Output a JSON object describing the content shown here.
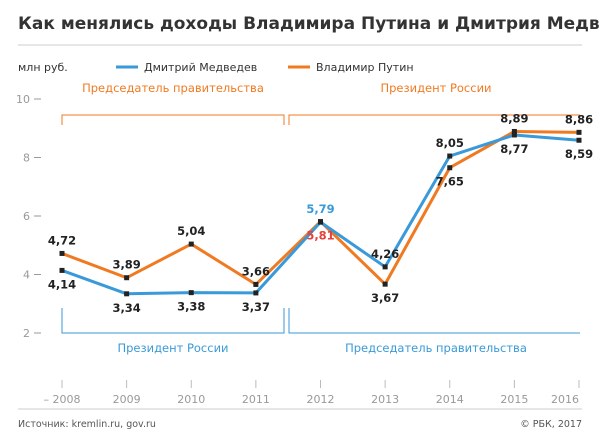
{
  "chart_data": {
    "type": "line",
    "title": "Как менялись доходы Владимира Путина и Дмитрия Медведева",
    "ylabel": "млн руб.",
    "xlabel": "",
    "x": [
      "2008",
      "2009",
      "2010",
      "2011",
      "2012",
      "2013",
      "2014",
      "2015",
      "2016"
    ],
    "ylim": [
      2,
      10
    ],
    "yticks": [
      2,
      4,
      6,
      8,
      10
    ],
    "ytick_labels": [
      "2",
      "4",
      "6",
      "8",
      "10"
    ],
    "grid": false,
    "legend_position": "top-left",
    "series": [
      {
        "name": "Дмитрий Медведев",
        "color": "#3a9ad9",
        "values": [
          4.14,
          3.34,
          3.38,
          3.37,
          5.79,
          4.26,
          8.05,
          8.77,
          8.59
        ],
        "labels": [
          "4,14",
          "3,34",
          "3,38",
          "3,37",
          "5,79",
          "4,26",
          "8,05",
          "8,77",
          "8,59"
        ],
        "label_pos": [
          "below",
          "below",
          "below",
          "below",
          "above",
          "above",
          "above",
          "below",
          "below"
        ]
      },
      {
        "name": "Владимир Путин",
        "color": "#f07a22",
        "values": [
          4.72,
          3.89,
          5.04,
          3.66,
          5.81,
          3.67,
          7.65,
          8.89,
          8.86
        ],
        "labels": [
          "4,72",
          "3,89",
          "5,04",
          "3,66",
          "5,81",
          "3,67",
          "7,65",
          "8,89",
          "8,86"
        ],
        "label_pos": [
          "above",
          "above",
          "above",
          "above",
          "below",
          "below",
          "below",
          "above",
          "above"
        ]
      }
    ],
    "annotations": {
      "putin_roles": [
        "Председатель правительства",
        "Президент России"
      ],
      "medvedev_roles": [
        "Президент России",
        "Председатель правительства"
      ]
    },
    "highlight_colors": {
      "medvedev_2012": "#3a9ad9",
      "putin_2012": "#e5413c"
    }
  },
  "footer": {
    "source": "Источник: kremlin.ru, gov.ru",
    "copyright": "© РБК, 2017"
  }
}
